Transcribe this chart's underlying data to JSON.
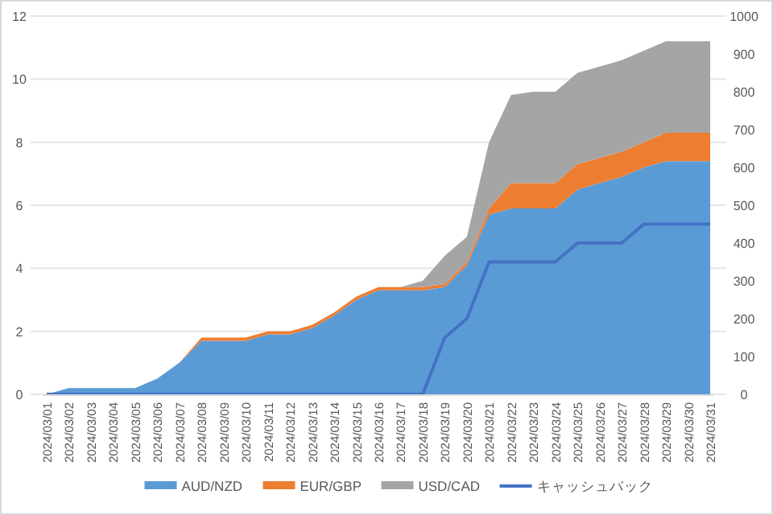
{
  "chart_data": {
    "type": "area",
    "stacked": true,
    "categories": [
      "2024/03/01",
      "2024/03/02",
      "2024/03/03",
      "2024/03/04",
      "2024/03/05",
      "2024/03/06",
      "2024/03/07",
      "2024/03/08",
      "2024/03/09",
      "2024/03/10",
      "2024/03/11",
      "2024/03/12",
      "2024/03/13",
      "2024/03/14",
      "2024/03/15",
      "2024/03/16",
      "2024/03/17",
      "2024/03/18",
      "2024/03/19",
      "2024/03/20",
      "2024/03/21",
      "2024/03/22",
      "2024/03/23",
      "2024/03/24",
      "2024/03/25",
      "2024/03/26",
      "2024/03/27",
      "2024/03/28",
      "2024/03/29",
      "2024/03/30",
      "2024/03/31"
    ],
    "series": [
      {
        "name": "AUD/NZD",
        "color": "#5b9bd5",
        "values": [
          0,
          0.2,
          0.2,
          0.2,
          0.2,
          0.5,
          1.0,
          1.7,
          1.7,
          1.7,
          1.9,
          1.9,
          2.1,
          2.5,
          3.0,
          3.3,
          3.3,
          3.3,
          3.4,
          4.1,
          5.7,
          5.9,
          5.9,
          5.9,
          6.5,
          6.7,
          6.9,
          7.2,
          7.4,
          7.4,
          7.4
        ]
      },
      {
        "name": "EUR/GBP",
        "color": "#ed7d31",
        "values": [
          0,
          0,
          0,
          0,
          0,
          0,
          0,
          0.1,
          0.1,
          0.1,
          0.1,
          0.1,
          0.1,
          0.1,
          0.1,
          0.1,
          0.1,
          0.1,
          0.1,
          0.1,
          0.2,
          0.8,
          0.8,
          0.8,
          0.8,
          0.8,
          0.8,
          0.8,
          0.9,
          0.9,
          0.9
        ]
      },
      {
        "name": "USD/CAD",
        "color": "#a5a5a5",
        "values": [
          0,
          0,
          0,
          0,
          0,
          0,
          0,
          0,
          0,
          0,
          0,
          0,
          0,
          0,
          0,
          0,
          0,
          0.2,
          0.9,
          0.8,
          2.1,
          2.8,
          2.9,
          2.9,
          2.9,
          2.9,
          2.9,
          2.9,
          2.9,
          2.9,
          2.9
        ]
      },
      {
        "name": "キャッシュバック",
        "type": "line",
        "axis": "y2",
        "color": "#4472c4",
        "values": [
          0,
          0,
          0,
          0,
          0,
          0,
          0,
          0,
          0,
          0,
          0,
          0,
          0,
          0,
          0,
          0,
          0,
          0,
          150,
          200,
          350,
          350,
          350,
          350,
          400,
          400,
          400,
          450,
          450,
          450,
          450
        ]
      }
    ],
    "ylim": [
      0,
      12
    ],
    "yticks": [
      0,
      2,
      4,
      6,
      8,
      10,
      12
    ],
    "y2lim": [
      0,
      1000
    ],
    "y2ticks": [
      0,
      100,
      200,
      300,
      400,
      500,
      600,
      700,
      800,
      900,
      1000
    ],
    "grid": "y",
    "legend": "bottom"
  }
}
